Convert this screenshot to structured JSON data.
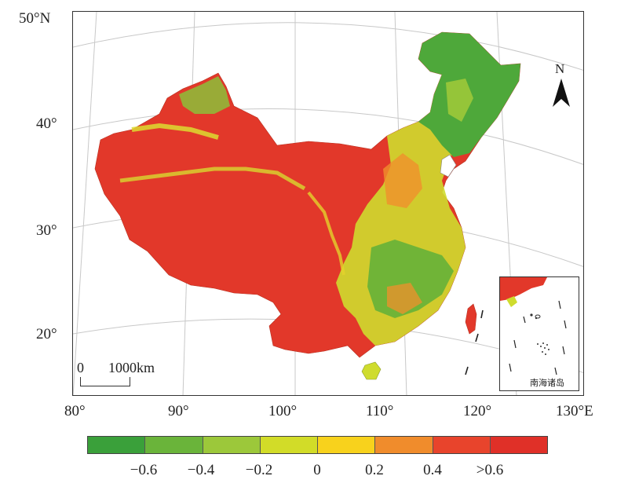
{
  "latitude_labels": [
    "50°N",
    "40°",
    "30°",
    "20°"
  ],
  "longitude_labels": [
    "80°",
    "90°",
    "100°",
    "110°",
    "120°",
    "130°E"
  ],
  "north_arrow": {
    "letter": "N"
  },
  "scale_bar": {
    "start": "0",
    "end": "1000km"
  },
  "inset": {
    "label": "南海诸岛"
  },
  "legend": {
    "colors": [
      "#3aa03a",
      "#6ab43a",
      "#9cc83a",
      "#d2dc28",
      "#f8d21c",
      "#f08c2c",
      "#e8442c",
      "#e03028"
    ],
    "ticks": [
      "−0.6",
      "−0.4",
      "−0.2",
      "0",
      "0.2",
      "0.4",
      ">0.6"
    ]
  }
}
